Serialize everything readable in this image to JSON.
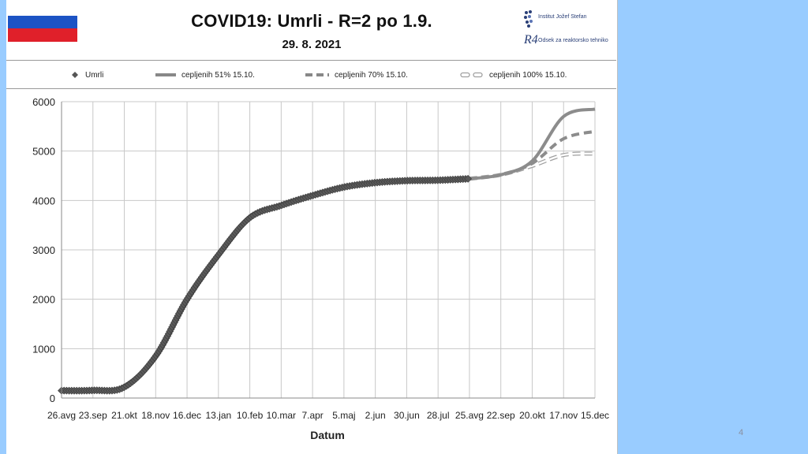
{
  "slide": {
    "page_number": "4",
    "colors": {
      "background": "#ffffff",
      "side_panel": "#99ccff"
    }
  },
  "header": {
    "title": "COVID19: Umrli - R=2 po 1.9.",
    "date": "29. 8. 2021",
    "flag": {
      "colors": [
        "#ffffff",
        "#1c53c4",
        "#e0202a"
      ]
    },
    "logos": {
      "ijs_text": "Institut Jožef Stefan",
      "r4_mark": "R4",
      "r4_text": "Odsek za reaktorsko tehniko"
    }
  },
  "legend": {
    "items": [
      {
        "label": "Umrli",
        "style": "diamond-marker",
        "color": "#555555"
      },
      {
        "label": "cepljenih 51% 15.10.",
        "style": "solid",
        "color": "#888888"
      },
      {
        "label": "cepljenih 70% 15.10.",
        "style": "dashed",
        "color": "#888888"
      },
      {
        "label": "cepljenih 100% 15.10.",
        "style": "hollow-dash",
        "color": "#a0a0a0"
      }
    ]
  },
  "chart_data": {
    "type": "line",
    "title": "COVID19: Umrli - R=2 po 1.9.",
    "subtitle": "29. 8. 2021",
    "xlabel": "Datum",
    "ylabel": "",
    "ylim": [
      0,
      6000
    ],
    "y_ticks": [
      0,
      1000,
      2000,
      3000,
      4000,
      5000,
      6000
    ],
    "x_ticks": [
      "26.avg",
      "23.sep",
      "21.okt",
      "18.nov",
      "16.dec",
      "13.jan",
      "10.feb",
      "10.mar",
      "7.apr",
      "5.maj",
      "2.jun",
      "30.jun",
      "28.jul",
      "25.avg",
      "22.sep",
      "20.okt",
      "17.nov",
      "15.dec"
    ],
    "grid": true,
    "legend_position": "top",
    "series": [
      {
        "name": "Umrli",
        "style": "diamond-markers",
        "points": [
          [
            "26.avg",
            150
          ],
          [
            "23.sep",
            155
          ],
          [
            "21.okt",
            220
          ],
          [
            "18.nov",
            850
          ],
          [
            "16.dec",
            2000
          ],
          [
            "13.jan",
            2900
          ],
          [
            "10.feb",
            3650
          ],
          [
            "10.mar",
            3900
          ],
          [
            "7.apr",
            4100
          ],
          [
            "5.maj",
            4270
          ],
          [
            "2.jun",
            4360
          ],
          [
            "30.jun",
            4400
          ],
          [
            "28.jul",
            4410
          ],
          [
            "25.avg",
            4440
          ]
        ]
      },
      {
        "name": "cepljenih 51% 15.10.",
        "style": "solid",
        "points": [
          [
            "25.avg",
            4440
          ],
          [
            "22.sep",
            4520
          ],
          [
            "20.okt",
            4800
          ],
          [
            "17.nov",
            5700
          ],
          [
            "15.dec",
            5850
          ]
        ]
      },
      {
        "name": "cepljenih 70% 15.10.",
        "style": "dashed",
        "points": [
          [
            "25.avg",
            4440
          ],
          [
            "22.sep",
            4520
          ],
          [
            "20.okt",
            4750
          ],
          [
            "17.nov",
            5250
          ],
          [
            "15.dec",
            5400
          ]
        ]
      },
      {
        "name": "cepljenih 100% 15.10.",
        "style": "hollow-dash",
        "points": [
          [
            "25.avg",
            4440
          ],
          [
            "22.sep",
            4520
          ],
          [
            "20.okt",
            4700
          ],
          [
            "17.nov",
            4920
          ],
          [
            "15.dec",
            4950
          ]
        ]
      }
    ]
  }
}
